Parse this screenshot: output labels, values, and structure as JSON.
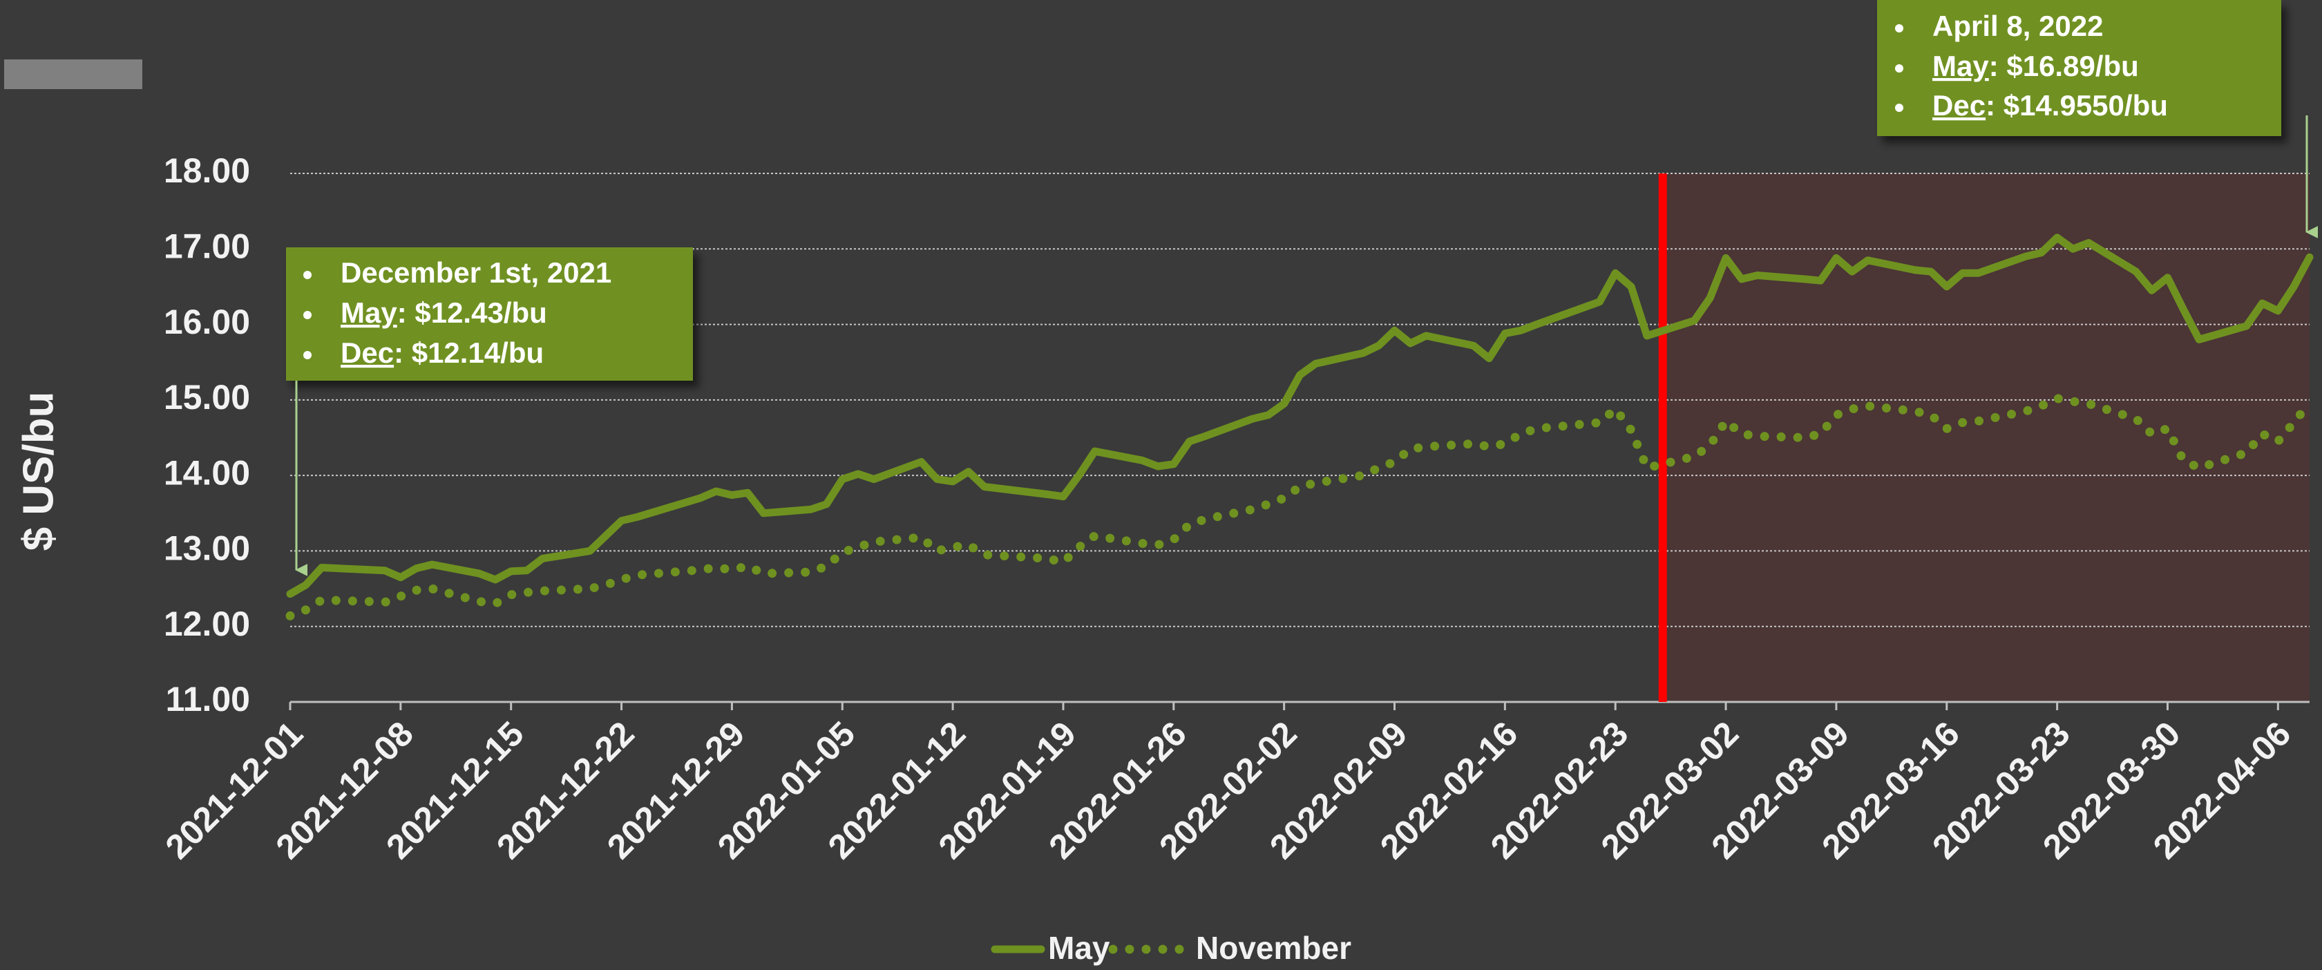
{
  "chart_data": {
    "type": "line",
    "y_label": "$ US/bu",
    "x": [
      "2021-12-01",
      "2021-12-02",
      "2021-12-03",
      "2021-12-06",
      "2021-12-07",
      "2021-12-08",
      "2021-12-09",
      "2021-12-10",
      "2021-12-13",
      "2021-12-14",
      "2021-12-15",
      "2021-12-16",
      "2021-12-17",
      "2021-12-20",
      "2021-12-21",
      "2021-12-22",
      "2021-12-23",
      "2021-12-27",
      "2021-12-28",
      "2021-12-29",
      "2021-12-30",
      "2021-12-31",
      "2022-01-03",
      "2022-01-04",
      "2022-01-05",
      "2022-01-06",
      "2022-01-07",
      "2022-01-10",
      "2022-01-11",
      "2022-01-12",
      "2022-01-13",
      "2022-01-14",
      "2022-01-18",
      "2022-01-19",
      "2022-01-20",
      "2022-01-21",
      "2022-01-24",
      "2022-01-25",
      "2022-01-26",
      "2022-01-27",
      "2022-01-28",
      "2022-01-31",
      "2022-02-01",
      "2022-02-02",
      "2022-02-03",
      "2022-02-04",
      "2022-02-07",
      "2022-02-08",
      "2022-02-09",
      "2022-02-10",
      "2022-02-11",
      "2022-02-14",
      "2022-02-15",
      "2022-02-16",
      "2022-02-17",
      "2022-02-18",
      "2022-02-22",
      "2022-02-23",
      "2022-02-24",
      "2022-02-25",
      "2022-02-28",
      "2022-03-01",
      "2022-03-02",
      "2022-03-03",
      "2022-03-04",
      "2022-03-07",
      "2022-03-08",
      "2022-03-09",
      "2022-03-10",
      "2022-03-11",
      "2022-03-14",
      "2022-03-15",
      "2022-03-16",
      "2022-03-17",
      "2022-03-18",
      "2022-03-21",
      "2022-03-22",
      "2022-03-23",
      "2022-03-24",
      "2022-03-25",
      "2022-03-28",
      "2022-03-29",
      "2022-03-30",
      "2022-03-31",
      "2022-04-01",
      "2022-04-04",
      "2022-04-05",
      "2022-04-06",
      "2022-04-07",
      "2022-04-08"
    ],
    "series": [
      {
        "name": "May",
        "color": "#6f9120",
        "style": "solid",
        "values": [
          12.43,
          12.55,
          12.78,
          12.75,
          12.74,
          12.65,
          12.77,
          12.82,
          12.7,
          12.62,
          12.73,
          12.74,
          12.9,
          13.0,
          13.2,
          13.4,
          13.45,
          13.7,
          13.79,
          13.74,
          13.77,
          13.5,
          13.55,
          13.62,
          13.95,
          14.02,
          13.95,
          14.18,
          13.95,
          13.92,
          14.05,
          13.85,
          13.75,
          13.72,
          14.0,
          14.32,
          14.2,
          14.12,
          14.15,
          14.45,
          14.52,
          14.75,
          14.8,
          14.95,
          15.33,
          15.48,
          15.62,
          15.72,
          15.92,
          15.75,
          15.85,
          15.72,
          15.55,
          15.88,
          15.92,
          16.0,
          16.3,
          16.68,
          16.5,
          15.85,
          16.05,
          16.35,
          16.88,
          16.6,
          16.65,
          16.6,
          16.58,
          16.88,
          16.7,
          16.85,
          16.72,
          16.7,
          16.5,
          16.68,
          16.68,
          16.9,
          16.95,
          17.15,
          17.0,
          17.08,
          16.7,
          16.45,
          16.62,
          16.2,
          15.8,
          15.98,
          16.28,
          16.18,
          16.5,
          16.89
        ]
      },
      {
        "name": "November",
        "color": "#6f9120",
        "style": "dotted",
        "values": [
          12.14,
          12.22,
          12.35,
          12.33,
          12.32,
          12.4,
          12.48,
          12.5,
          12.33,
          12.3,
          12.42,
          12.45,
          12.47,
          12.5,
          12.55,
          12.62,
          12.68,
          12.75,
          12.78,
          12.75,
          12.8,
          12.7,
          12.72,
          12.8,
          12.98,
          13.05,
          13.12,
          13.18,
          13.0,
          13.05,
          13.08,
          12.95,
          12.9,
          12.85,
          13.05,
          13.2,
          13.1,
          13.08,
          13.15,
          13.35,
          13.42,
          13.55,
          13.62,
          13.7,
          13.85,
          13.9,
          14.0,
          14.1,
          14.18,
          14.35,
          14.38,
          14.42,
          14.38,
          14.42,
          14.55,
          14.62,
          14.7,
          14.88,
          14.6,
          14.1,
          14.25,
          14.4,
          14.72,
          14.55,
          14.52,
          14.5,
          14.55,
          14.8,
          14.88,
          14.92,
          14.85,
          14.8,
          14.62,
          14.7,
          14.72,
          14.85,
          14.92,
          15.02,
          14.98,
          14.95,
          14.75,
          14.55,
          14.62,
          14.2,
          14.1,
          14.3,
          14.55,
          14.45,
          14.7,
          14.96
        ]
      }
    ],
    "xlim": [
      "2021-12-01",
      "2022-04-08"
    ],
    "xticks": [
      "2021-12-01",
      "2021-12-08",
      "2021-12-15",
      "2021-12-22",
      "2021-12-29",
      "2022-01-05",
      "2022-01-12",
      "2022-01-19",
      "2022-01-26",
      "2022-02-02",
      "2022-02-09",
      "2022-02-16",
      "2022-02-23",
      "2022-03-02",
      "2022-03-09",
      "2022-03-16",
      "2022-03-23",
      "2022-03-30",
      "2022-04-06"
    ],
    "ylim": [
      11,
      18
    ],
    "yticks": [
      {
        "value": 11,
        "label": "11.00"
      },
      {
        "value": 12,
        "label": "12.00"
      },
      {
        "value": 13,
        "label": "13.00"
      },
      {
        "value": 14,
        "label": "14.00"
      },
      {
        "value": 15,
        "label": "15.00"
      },
      {
        "value": 16,
        "label": "16.00"
      },
      {
        "value": 17,
        "label": "17.00"
      },
      {
        "value": 18,
        "label": "18.00"
      }
    ],
    "grid": true,
    "legend": "bottom",
    "shaded_from": "2022-02-26",
    "shade_color": "#4b3535",
    "marker_line_color": "#ff0000",
    "annotations": [
      {
        "lines": [
          [
            "December 1st, 2021"
          ],
          [
            "May",
            ": $12.43/bu"
          ],
          [
            "Dec",
            ": $12.14/bu"
          ]
        ]
      },
      {
        "lines": [
          [
            "April 8, 2022"
          ],
          [
            "May",
            ": $16.89/bu"
          ],
          [
            "Dec",
            ": $14.9550/bu"
          ]
        ]
      }
    ]
  }
}
